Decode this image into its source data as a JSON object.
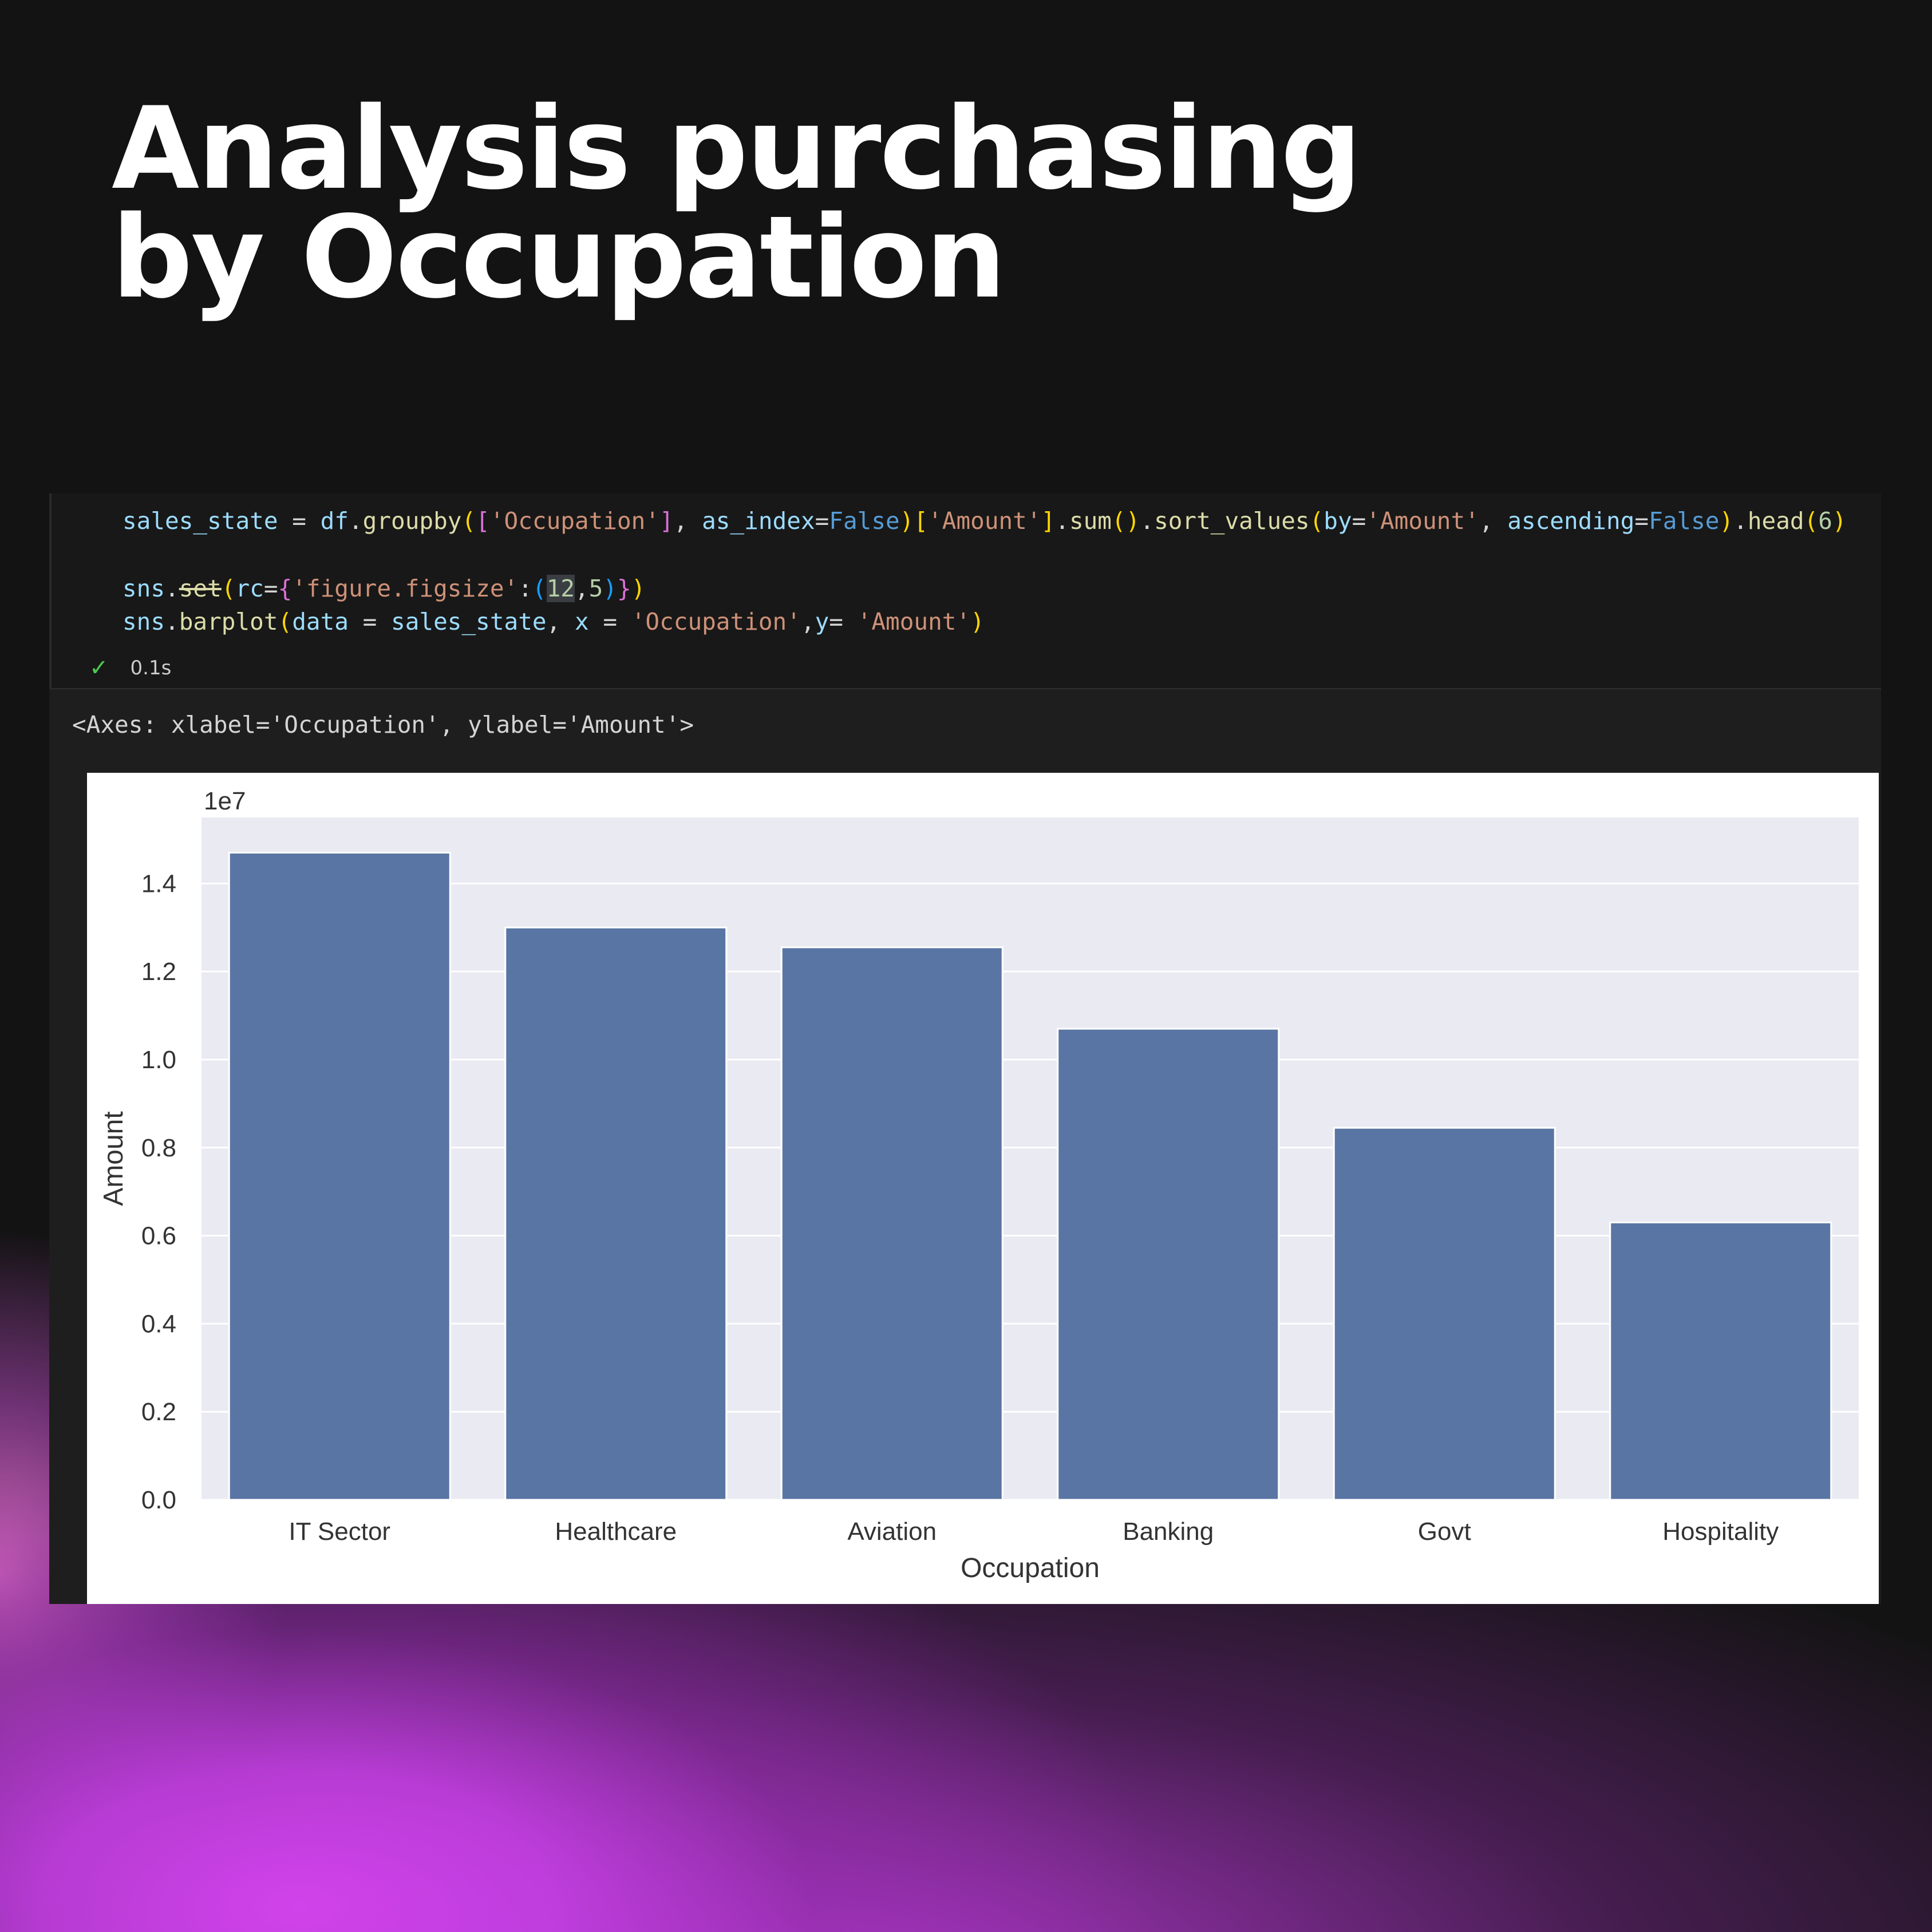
{
  "title": {
    "line1": "Analysis purchasing",
    "line2": "by Occupation"
  },
  "code": {
    "line1": [
      {
        "t": "sales_state",
        "c": "c-var"
      },
      {
        "t": " = ",
        "c": ""
      },
      {
        "t": "df",
        "c": "c-var"
      },
      {
        "t": ".",
        "c": ""
      },
      {
        "t": "groupby",
        "c": "c-fn"
      },
      {
        "t": "(",
        "c": "c-br1"
      },
      {
        "t": "[",
        "c": "c-br2"
      },
      {
        "t": "'Occupation'",
        "c": "c-str"
      },
      {
        "t": "]",
        "c": "c-br2"
      },
      {
        "t": ", ",
        "c": ""
      },
      {
        "t": "as_index",
        "c": "c-var"
      },
      {
        "t": "=",
        "c": ""
      },
      {
        "t": "False",
        "c": "c-kw"
      },
      {
        "t": ")",
        "c": "c-br1"
      },
      {
        "t": "[",
        "c": "c-br1"
      },
      {
        "t": "'Amount'",
        "c": "c-str"
      },
      {
        "t": "]",
        "c": "c-br1"
      },
      {
        "t": ".",
        "c": ""
      },
      {
        "t": "sum",
        "c": "c-fn"
      },
      {
        "t": "()",
        "c": "c-br1"
      },
      {
        "t": ".",
        "c": ""
      },
      {
        "t": "sort_values",
        "c": "c-fn"
      },
      {
        "t": "(",
        "c": "c-br1"
      },
      {
        "t": "by",
        "c": "c-var"
      },
      {
        "t": "=",
        "c": ""
      },
      {
        "t": "'Amount'",
        "c": "c-str"
      },
      {
        "t": ", ",
        "c": ""
      },
      {
        "t": "ascending",
        "c": "c-var"
      },
      {
        "t": "=",
        "c": ""
      },
      {
        "t": "False",
        "c": "c-kw"
      },
      {
        "t": ")",
        "c": "c-br1"
      },
      {
        "t": ".",
        "c": ""
      },
      {
        "t": "head",
        "c": "c-fn"
      },
      {
        "t": "(",
        "c": "c-br1"
      },
      {
        "t": "6",
        "c": "c-num"
      },
      {
        "t": ")",
        "c": "c-br1"
      }
    ],
    "line2": [
      {
        "t": "sns",
        "c": "c-var"
      },
      {
        "t": ".",
        "c": ""
      },
      {
        "t": "set",
        "c": "c-strike"
      },
      {
        "t": "(",
        "c": "c-br1"
      },
      {
        "t": "rc",
        "c": "c-var"
      },
      {
        "t": "=",
        "c": ""
      },
      {
        "t": "{",
        "c": "c-br2"
      },
      {
        "t": "'figure.figsize'",
        "c": "c-str"
      },
      {
        "t": ":",
        "c": ""
      },
      {
        "t": "(",
        "c": "c-br3"
      },
      {
        "t": "12",
        "c": "c-num hl"
      },
      {
        "t": ",",
        "c": ""
      },
      {
        "t": "5",
        "c": "c-num"
      },
      {
        "t": ")",
        "c": "c-br3"
      },
      {
        "t": "}",
        "c": "c-br2"
      },
      {
        "t": ")",
        "c": "c-br1"
      }
    ],
    "line3": [
      {
        "t": "sns",
        "c": "c-var"
      },
      {
        "t": ".",
        "c": ""
      },
      {
        "t": "barplot",
        "c": "c-fn"
      },
      {
        "t": "(",
        "c": "c-br1"
      },
      {
        "t": "data",
        "c": "c-var"
      },
      {
        "t": " = ",
        "c": ""
      },
      {
        "t": "sales_state",
        "c": "c-var"
      },
      {
        "t": ", ",
        "c": ""
      },
      {
        "t": "x",
        "c": "c-var"
      },
      {
        "t": " = ",
        "c": ""
      },
      {
        "t": "'Occupation'",
        "c": "c-str"
      },
      {
        "t": ",",
        "c": ""
      },
      {
        "t": "y",
        "c": "c-var"
      },
      {
        "t": "= ",
        "c": ""
      },
      {
        "t": "'Amount'",
        "c": "c-str"
      },
      {
        "t": ")",
        "c": "c-br1"
      }
    ],
    "status_time": "0.1s"
  },
  "output_text": "<Axes: xlabel='Occupation', ylabel='Amount'>",
  "chart_data": {
    "type": "bar",
    "categories": [
      "IT Sector",
      "Healthcare",
      "Aviation",
      "Banking",
      "Govt",
      "Hospitality"
    ],
    "values": [
      14700000,
      13000000,
      12550000,
      10700000,
      8450000,
      6300000
    ],
    "xlabel": "Occupation",
    "ylabel": "Amount",
    "offset_label": "1e7",
    "yticks": [
      0,
      2000000,
      4000000,
      6000000,
      8000000,
      10000000,
      12000000,
      14000000
    ],
    "ytick_labels": [
      "0.0",
      "0.2",
      "0.4",
      "0.6",
      "0.8",
      "1.0",
      "1.2",
      "1.4"
    ],
    "ylim": [
      0,
      15500000
    ],
    "grid": true,
    "bar_color": "#5975a4",
    "axes_bg": "#eaeaf2"
  }
}
